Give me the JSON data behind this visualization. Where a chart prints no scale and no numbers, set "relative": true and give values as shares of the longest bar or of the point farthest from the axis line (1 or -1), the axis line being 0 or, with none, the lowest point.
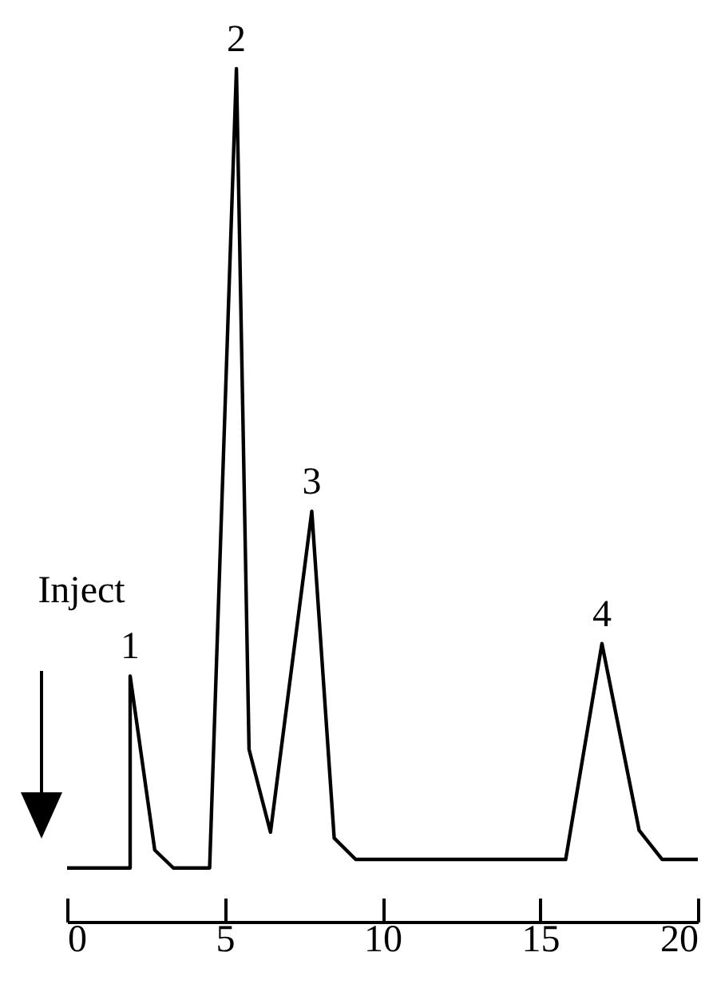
{
  "chart_data": {
    "type": "line",
    "relative": true,
    "x": [
      0,
      2.0,
      2.0,
      2.78,
      3.37,
      4.52,
      5.37,
      5.77,
      6.45,
      7.76,
      8.47,
      9.15,
      15.81,
      16.96,
      18.14,
      18.87,
      20
    ],
    "series": [
      {
        "color": "#000000",
        "values": [
          0.063,
          0.063,
          0.288,
          0.084,
          0.063,
          0.063,
          1,
          0.202,
          0.105,
          0.481,
          0.098,
          0.073,
          0.073,
          0.326,
          0.107,
          0.073,
          0.073
        ]
      }
    ],
    "xlim": [
      0,
      20
    ],
    "xticks": [
      0,
      5,
      10,
      15,
      20
    ],
    "tick_labels": "x",
    "grid": false,
    "marker": "none",
    "line_style": "solid",
    "annotations": [
      "Inject",
      {
        "text": "1",
        "x": 2.0,
        "y": 0.288
      },
      {
        "text": "2",
        "x": 5.37,
        "y": 1
      },
      {
        "text": "3",
        "x": 7.76,
        "y": 0.481
      },
      {
        "text": "4",
        "x": 16.96,
        "y": 0.326
      }
    ]
  }
}
